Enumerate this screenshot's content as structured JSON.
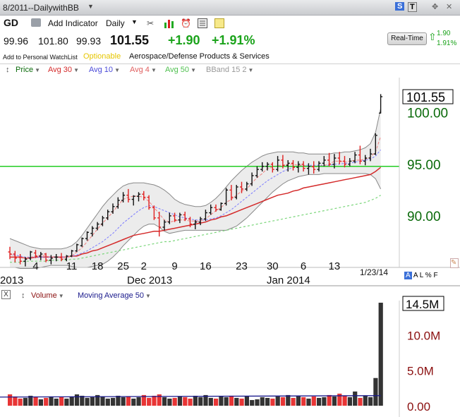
{
  "window": {
    "title": "8/2011--DailywithBB",
    "controls": [
      "S",
      "T",
      "✥",
      "✕"
    ]
  },
  "toolbar": {
    "symbol": "GD",
    "add_indicator_label": "Add Indicator",
    "period_label": "Daily"
  },
  "quote": {
    "open": "99.96",
    "high": "101.80",
    "low": "99.93",
    "last": "101.55",
    "change": "+1.90",
    "change_pct": "+1.91%",
    "watchlist_link": "Add to Personal WatchList",
    "optionable": "Optionable",
    "industry": "Aerospace/Defense Products & Services",
    "realtime_button": "Real-Time",
    "realtime_change": "1.90",
    "realtime_change_pct": "1.91%"
  },
  "legend": {
    "price": "Price",
    "avg30": "Avg 30",
    "avg10": "Avg 10",
    "avg4": "Avg 4",
    "avg50": "Avg 50",
    "bband": "BBand 15 2"
  },
  "colors": {
    "up": "#111111",
    "down": "#e02020",
    "avg30": "#d42a2a",
    "avg10": "#7b7bff",
    "avg4": "#f08080",
    "avg50": "#7ad67a",
    "bband": "#888888",
    "hline": "#22cc22",
    "axis_price": "#0a6a0a",
    "axis_volume": "#8b1010",
    "vol_ma": "#1a1a8c"
  },
  "date_labels": {
    "days": [
      "4",
      "11",
      "18",
      "25",
      "2",
      "9",
      "16",
      "23",
      "30",
      "6",
      "13"
    ],
    "months": [
      "2013",
      "Dec 2013",
      "Jan 2014"
    ],
    "last_date": "1/23/14",
    "alpf": "A L % F"
  },
  "volume_legend": {
    "volume": "Volume",
    "ma": "Moving Average 50"
  },
  "chart_data": [
    {
      "type": "candlestick",
      "title": "GD",
      "y_ticks": [
        "90.00",
        "95.00",
        "100.00"
      ],
      "last_price_label": "101.55",
      "ylim": [
        86.3,
        103.4
      ],
      "horizontal_line": 94.8,
      "legend_placement": "top-left",
      "grid": false,
      "ohlc": [
        [
          86.5,
          87.0,
          85.8,
          86.3
        ],
        [
          86.3,
          86.6,
          85.5,
          85.9
        ],
        [
          86.0,
          86.3,
          85.3,
          85.6
        ],
        [
          85.6,
          86.0,
          85.1,
          85.8
        ],
        [
          85.9,
          86.6,
          85.7,
          86.5
        ],
        [
          86.4,
          86.7,
          85.9,
          86.1
        ],
        [
          86.1,
          86.5,
          85.7,
          86.3
        ],
        [
          86.3,
          86.4,
          85.5,
          85.7
        ],
        [
          85.7,
          86.2,
          85.3,
          85.9
        ],
        [
          86.0,
          86.3,
          85.6,
          86.0
        ],
        [
          86.0,
          86.4,
          85.6,
          85.8
        ],
        [
          85.8,
          86.2,
          85.6,
          86.1
        ],
        [
          86.1,
          86.7,
          86.0,
          86.6
        ],
        [
          86.6,
          87.3,
          86.5,
          87.2
        ],
        [
          87.1,
          87.9,
          87.0,
          87.8
        ],
        [
          87.8,
          88.5,
          87.6,
          88.4
        ],
        [
          88.3,
          89.0,
          88.0,
          88.8
        ],
        [
          88.8,
          89.4,
          88.6,
          89.2
        ],
        [
          89.2,
          90.0,
          89.0,
          89.8
        ],
        [
          89.8,
          90.6,
          89.6,
          90.4
        ],
        [
          90.4,
          91.2,
          90.2,
          90.9
        ],
        [
          90.9,
          91.8,
          90.7,
          91.5
        ],
        [
          91.5,
          92.3,
          91.3,
          92.0
        ],
        [
          92.0,
          92.6,
          91.3,
          91.6
        ],
        [
          91.6,
          92.0,
          91.0,
          91.9
        ],
        [
          91.9,
          92.3,
          91.4,
          92.1
        ],
        [
          92.1,
          92.4,
          91.5,
          91.8
        ],
        [
          91.8,
          92.0,
          90.6,
          90.8
        ],
        [
          90.8,
          91.0,
          89.6,
          89.8
        ],
        [
          89.8,
          90.4,
          88.0,
          88.9
        ],
        [
          88.9,
          89.6,
          88.6,
          89.4
        ],
        [
          89.4,
          90.3,
          89.2,
          90.0
        ],
        [
          90.0,
          90.3,
          89.4,
          89.6
        ],
        [
          89.6,
          90.3,
          89.3,
          90.1
        ],
        [
          90.1,
          90.4,
          89.5,
          89.7
        ],
        [
          89.7,
          89.9,
          88.9,
          89.2
        ],
        [
          89.2,
          89.6,
          88.7,
          89.4
        ],
        [
          89.4,
          89.9,
          89.1,
          89.7
        ],
        [
          89.7,
          90.6,
          89.5,
          90.3
        ],
        [
          90.3,
          91.1,
          90.1,
          90.8
        ],
        [
          90.8,
          91.1,
          90.4,
          90.6
        ],
        [
          90.6,
          91.3,
          90.5,
          91.2
        ],
        [
          91.2,
          92.7,
          91.0,
          92.5
        ],
        [
          92.5,
          93.0,
          91.5,
          91.8
        ],
        [
          91.8,
          93.0,
          91.6,
          92.8
        ],
        [
          92.8,
          93.3,
          92.2,
          92.6
        ],
        [
          92.6,
          93.3,
          92.4,
          93.1
        ],
        [
          93.1,
          94.2,
          92.9,
          93.9
        ],
        [
          93.9,
          94.8,
          93.7,
          94.5
        ],
        [
          94.5,
          95.2,
          94.3,
          94.8
        ],
        [
          94.8,
          95.2,
          94.4,
          95.0
        ],
        [
          95.0,
          95.2,
          94.2,
          94.5
        ],
        [
          94.5,
          95.8,
          94.3,
          95.4
        ],
        [
          95.4,
          95.9,
          94.6,
          94.9
        ],
        [
          94.9,
          95.4,
          94.3,
          95.1
        ],
        [
          95.1,
          95.4,
          94.4,
          94.7
        ],
        [
          94.7,
          95.3,
          94.2,
          95.0
        ],
        [
          95.0,
          95.3,
          94.3,
          94.6
        ],
        [
          94.6,
          95.1,
          94.0,
          94.8
        ],
        [
          94.8,
          95.3,
          94.1,
          94.5
        ],
        [
          94.5,
          95.3,
          94.3,
          95.1
        ],
        [
          95.1,
          95.8,
          94.8,
          95.4
        ],
        [
          95.4,
          96.1,
          94.8,
          95.0
        ],
        [
          95.0,
          96.0,
          94.6,
          95.6
        ],
        [
          95.6,
          96.2,
          95.0,
          95.3
        ],
        [
          95.3,
          95.8,
          94.7,
          95.0
        ],
        [
          95.0,
          95.6,
          94.8,
          95.3
        ],
        [
          95.3,
          96.2,
          95.1,
          95.9
        ],
        [
          95.9,
          96.8,
          95.0,
          95.3
        ],
        [
          95.3,
          95.9,
          94.9,
          95.6
        ],
        [
          95.6,
          96.5,
          95.3,
          96.0
        ],
        [
          96.0,
          98.0,
          95.9,
          97.8
        ],
        [
          99.96,
          101.8,
          99.93,
          101.55
        ]
      ],
      "series": [
        {
          "name": "Avg 30",
          "values": [
            86.0,
            86.0,
            86.0,
            85.9,
            85.9,
            86.0,
            86.0,
            86.0,
            86.0,
            86.0,
            86.0,
            86.0,
            86.1,
            86.1,
            86.3,
            86.4,
            86.6,
            86.7,
            86.9,
            87.1,
            87.3,
            87.5,
            87.7,
            87.9,
            88.1,
            88.2,
            88.3,
            88.4,
            88.5,
            88.5,
            88.6,
            88.7,
            88.8,
            88.9,
            89.0,
            89.1,
            89.2,
            89.3,
            89.4,
            89.6,
            89.7,
            89.9,
            90.0,
            90.2,
            90.4,
            90.6,
            90.8,
            91.0,
            91.2,
            91.4,
            91.6,
            91.8,
            92.0,
            92.1,
            92.2,
            92.4,
            92.5,
            92.7,
            92.8,
            92.9,
            93.0,
            93.1,
            93.2,
            93.3,
            93.4,
            93.5,
            93.6,
            93.7,
            93.8,
            93.9,
            94.0,
            94.3,
            94.7
          ]
        },
        {
          "name": "Avg 10",
          "values": [
            86.3,
            86.2,
            86.1,
            86.0,
            86.0,
            86.0,
            86.0,
            86.0,
            86.0,
            86.0,
            86.0,
            86.0,
            86.1,
            86.2,
            86.4,
            86.6,
            86.9,
            87.2,
            87.5,
            87.9,
            88.3,
            88.8,
            89.3,
            89.7,
            90.1,
            90.5,
            90.8,
            91.0,
            90.9,
            90.7,
            90.5,
            90.3,
            90.1,
            89.9,
            89.8,
            89.7,
            89.6,
            89.6,
            89.6,
            89.7,
            89.8,
            90.0,
            90.3,
            90.6,
            91.0,
            91.4,
            91.8,
            92.2,
            92.6,
            93.0,
            93.4,
            93.7,
            94.0,
            94.3,
            94.5,
            94.7,
            94.8,
            94.9,
            94.9,
            94.9,
            94.9,
            94.9,
            94.9,
            95.0,
            95.0,
            95.1,
            95.1,
            95.2,
            95.3,
            95.4,
            95.5,
            95.8,
            96.4
          ]
        },
        {
          "name": "Avg 4",
          "values": [
            86.3,
            86.1,
            85.9,
            85.9,
            86.0,
            86.1,
            86.2,
            86.1,
            86.0,
            86.0,
            85.9,
            86.0,
            86.1,
            86.5,
            86.9,
            87.5,
            88.1,
            88.7,
            89.3,
            89.8,
            90.4,
            91.0,
            91.6,
            91.8,
            91.9,
            91.9,
            91.8,
            91.4,
            90.8,
            90.2,
            89.6,
            89.4,
            89.5,
            89.6,
            89.6,
            89.5,
            89.5,
            89.5,
            89.7,
            90.1,
            90.5,
            90.8,
            91.3,
            91.6,
            92.0,
            92.4,
            92.6,
            93.2,
            93.7,
            94.1,
            94.6,
            94.7,
            94.9,
            94.9,
            95.0,
            95.0,
            94.9,
            94.9,
            94.8,
            94.7,
            94.8,
            94.9,
            95.0,
            95.3,
            95.3,
            95.2,
            95.3,
            95.4,
            95.4,
            95.5,
            95.7,
            96.2,
            97.7
          ]
        },
        {
          "name": "Avg 50",
          "values": [
            85.5,
            85.5,
            85.5,
            85.6,
            85.6,
            85.6,
            85.6,
            85.6,
            85.7,
            85.7,
            85.7,
            85.7,
            85.8,
            85.8,
            85.9,
            86.0,
            86.1,
            86.2,
            86.3,
            86.4,
            86.5,
            86.6,
            86.7,
            86.8,
            86.9,
            87.0,
            87.1,
            87.2,
            87.3,
            87.4,
            87.5,
            87.5,
            87.6,
            87.7,
            87.8,
            87.9,
            88.0,
            88.1,
            88.2,
            88.3,
            88.4,
            88.5,
            88.6,
            88.7,
            88.8,
            88.9,
            89.0,
            89.1,
            89.2,
            89.3,
            89.4,
            89.5,
            89.6,
            89.7,
            89.8,
            89.9,
            90.0,
            90.1,
            90.2,
            90.3,
            90.4,
            90.5,
            90.6,
            90.7,
            90.8,
            90.9,
            91.0,
            91.1,
            91.2,
            91.3,
            91.5,
            91.7,
            92.0
          ]
        },
        {
          "name": "BBand upper",
          "values": [
            87.8,
            87.6,
            87.4,
            87.2,
            87.0,
            86.9,
            86.8,
            86.8,
            86.8,
            86.8,
            86.8,
            86.9,
            87.1,
            87.5,
            88.1,
            88.8,
            89.5,
            90.2,
            90.9,
            91.5,
            92.0,
            92.5,
            92.9,
            93.1,
            93.2,
            93.2,
            93.2,
            93.1,
            93.0,
            92.8,
            92.5,
            92.1,
            91.6,
            91.3,
            91.1,
            91.0,
            90.9,
            90.9,
            91.0,
            91.3,
            91.7,
            92.2,
            92.8,
            93.4,
            93.9,
            94.4,
            94.8,
            95.2,
            95.5,
            95.8,
            96.0,
            96.1,
            96.2,
            96.2,
            96.2,
            96.2,
            96.1,
            96.1,
            96.0,
            96.0,
            96.0,
            96.0,
            96.0,
            96.1,
            96.1,
            96.2,
            96.2,
            96.3,
            96.4,
            96.6,
            97.0,
            98.1,
            100.4
          ]
        },
        {
          "name": "BBand lower",
          "values": [
            85.0,
            85.0,
            84.9,
            84.9,
            84.9,
            84.9,
            85.0,
            85.1,
            85.2,
            85.2,
            85.2,
            85.2,
            85.1,
            85.0,
            85.0,
            85.0,
            85.1,
            85.2,
            85.3,
            85.6,
            86.0,
            86.5,
            87.1,
            87.6,
            88.1,
            88.6,
            89.0,
            89.2,
            89.2,
            88.9,
            88.5,
            88.3,
            88.4,
            88.5,
            88.6,
            88.6,
            88.6,
            88.6,
            88.6,
            88.6,
            88.6,
            88.6,
            88.6,
            88.8,
            89.0,
            89.4,
            89.8,
            90.3,
            90.8,
            91.3,
            91.8,
            92.3,
            92.7,
            93.1,
            93.4,
            93.6,
            93.8,
            93.9,
            94.0,
            94.0,
            94.0,
            94.1,
            94.1,
            94.1,
            94.1,
            94.1,
            94.1,
            94.1,
            94.1,
            94.1,
            94.0,
            93.6,
            92.6
          ]
        }
      ]
    },
    {
      "type": "bar",
      "title": "Volume",
      "y_ticks": [
        "0.00",
        "5.0M",
        "10.0M"
      ],
      "last_volume_label": "14.5M",
      "ylim": [
        0,
        14.8
      ],
      "unit": "M",
      "values": [
        1.6,
        1.3,
        1.0,
        1.1,
        1.4,
        1.2,
        0.9,
        1.1,
        1.3,
        1.0,
        1.2,
        1.0,
        1.3,
        1.6,
        1.4,
        1.1,
        1.2,
        1.5,
        1.3,
        1.0,
        1.1,
        1.4,
        1.2,
        1.3,
        1.0,
        1.2,
        1.5,
        1.1,
        1.4,
        1.6,
        1.2,
        1.0,
        1.1,
        1.3,
        1.2,
        1.0,
        1.4,
        1.2,
        1.5,
        1.1,
        1.0,
        1.3,
        1.2,
        1.4,
        1.1,
        1.0,
        1.3,
        0.8,
        0.9,
        1.2,
        1.1,
        1.0,
        1.3,
        1.2,
        1.5,
        1.1,
        1.4,
        1.2,
        1.0,
        1.3,
        1.1,
        1.2,
        1.5,
        1.3,
        1.7,
        1.4,
        1.2,
        2.0,
        1.1,
        1.4,
        1.2,
        3.9,
        14.5
      ],
      "moving_average_50": 1.22
    }
  ]
}
